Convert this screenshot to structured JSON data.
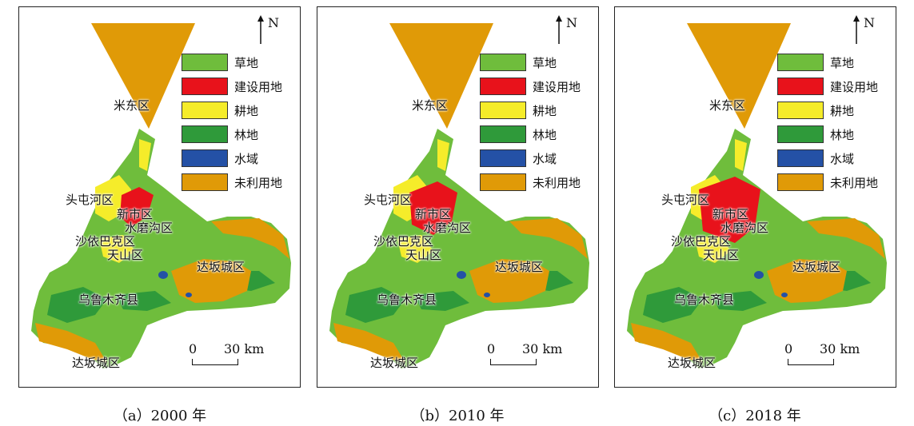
{
  "colors": {
    "grassland": "#6fbd3c",
    "construction": "#e8121b",
    "farmland": "#f5ec2a",
    "forest": "#2f9a3a",
    "water": "#2451a6",
    "unused": "#e09a07"
  },
  "legend": [
    {
      "label": "草地",
      "color_key": "grassland"
    },
    {
      "label": "建设用地",
      "color_key": "construction"
    },
    {
      "label": "耕地",
      "color_key": "farmland"
    },
    {
      "label": "林地",
      "color_key": "forest"
    },
    {
      "label": "水域",
      "color_key": "water"
    },
    {
      "label": "未利用地",
      "color_key": "unused"
    }
  ],
  "north": "N",
  "scale": {
    "zero": "0",
    "distance": "30 km"
  },
  "districts": {
    "midong": "米东区",
    "toutunhe": "头屯河区",
    "xinshi": "新市区",
    "shuimogou": "水磨沟区",
    "shayibake": "沙依巴克区",
    "tianshan": "天山区",
    "dabancheng_east": "达坂城区",
    "urumqi_county": "乌鲁木齐县",
    "dabancheng_south": "达坂城区"
  },
  "panels": [
    {
      "caption": "（a）2000 年",
      "year": "2000"
    },
    {
      "caption": "（b）2010 年",
      "year": "2010"
    },
    {
      "caption": "（c）2018 年",
      "year": "2018"
    }
  ]
}
